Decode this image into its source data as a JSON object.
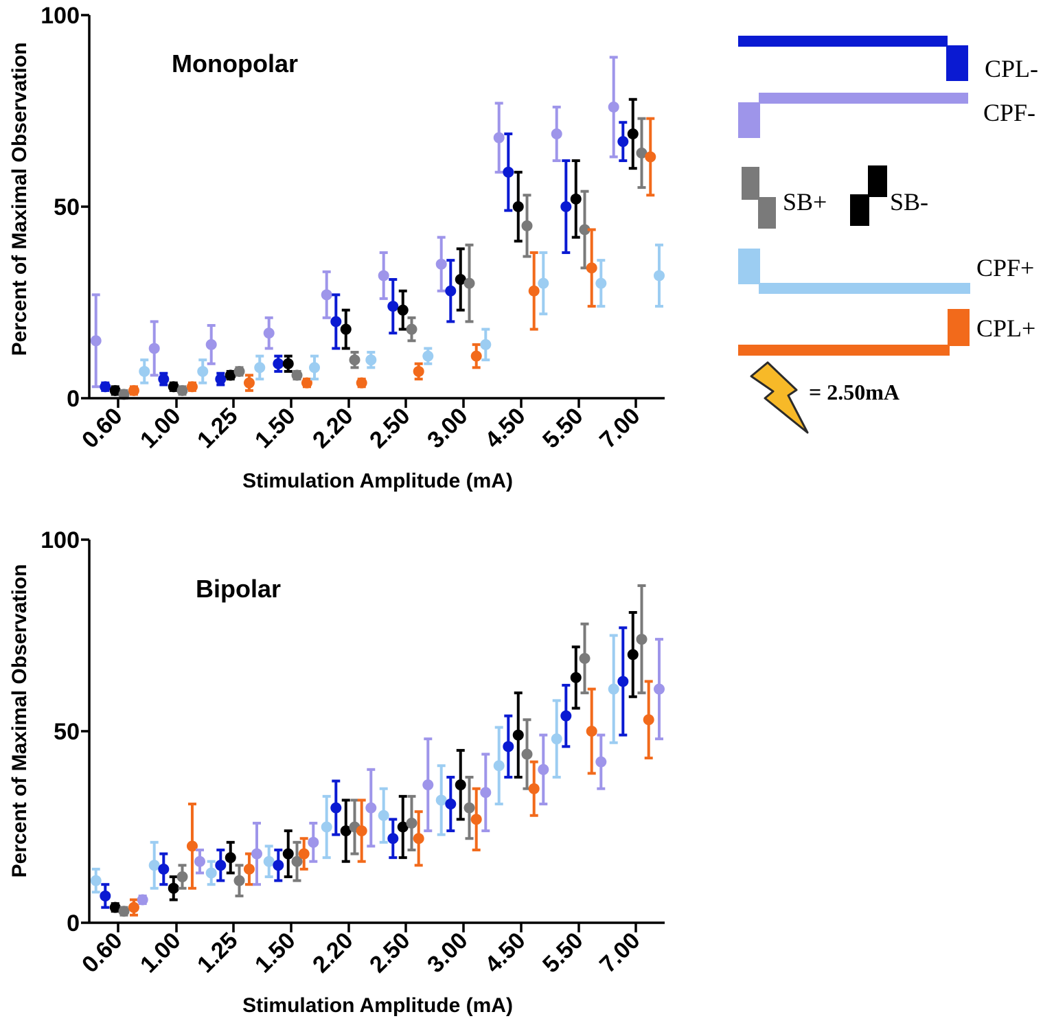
{
  "series_colors": {
    "CPL-": "#0a1ad2",
    "CPF-": "#9e95ea",
    "SB+": "#7a7a7a",
    "SB-": "#000000",
    "CPF+": "#9ccdf2",
    "CPL+": "#f26a1b"
  },
  "legend": {
    "entries": [
      {
        "key": "CPL-",
        "label": "CPL-"
      },
      {
        "key": "CPF-",
        "label": "CPF-"
      },
      {
        "key": "SB+",
        "label": "SB+"
      },
      {
        "key": "SB-",
        "label": "SB-"
      },
      {
        "key": "CPF+",
        "label": "CPF+"
      },
      {
        "key": "CPL+",
        "label": "CPL+"
      }
    ],
    "lightning_label": "= 2.50mA",
    "lightning_icon": "lightning-bolt-icon"
  },
  "chart_data": [
    {
      "type": "scatter",
      "title": "Monopolar",
      "xlabel": "Stimulation Amplitude (mA)",
      "ylabel": "Percent of Maximal Observation",
      "ylim": [
        0,
        100
      ],
      "yticks": [
        "0",
        "50",
        "100"
      ],
      "categories": [
        "0.60",
        "1.00",
        "1.25",
        "1.50",
        "2.20",
        "2.50",
        "3.00",
        "4.50",
        "5.50",
        "7.00"
      ],
      "series": [
        {
          "name": "CPF-",
          "offsets": [
            -0.38,
            -0.38,
            -0.38,
            -0.38,
            -0.38,
            -0.38,
            -0.38,
            -0.38,
            -0.38,
            -0.38
          ],
          "values": [
            15,
            13,
            14,
            17,
            27,
            32,
            35,
            68,
            69,
            76
          ],
          "errors": [
            12,
            7,
            5,
            4,
            6,
            6,
            7,
            9,
            7,
            13
          ]
        },
        {
          "name": "CPL-",
          "offsets": [
            -0.22,
            -0.22,
            -0.22,
            -0.22,
            -0.22,
            -0.22,
            -0.22,
            -0.22,
            -0.22,
            -0.22
          ],
          "values": [
            3,
            5,
            5,
            9,
            20,
            24,
            28,
            59,
            50,
            67
          ],
          "errors": [
            1,
            1.5,
            1.5,
            2,
            7,
            7,
            8,
            10,
            12,
            5
          ]
        },
        {
          "name": "SB-",
          "offsets": [
            -0.05,
            -0.05,
            -0.05,
            -0.05,
            -0.05,
            -0.05,
            -0.05,
            -0.05,
            -0.05,
            -0.05
          ],
          "values": [
            2,
            3,
            6,
            9,
            18,
            23,
            31,
            50,
            52,
            69
          ],
          "errors": [
            1,
            1,
            1,
            2,
            5,
            5,
            8,
            9,
            10,
            9
          ]
        },
        {
          "name": "SB+",
          "offsets": [
            0.1,
            0.1,
            0.1,
            0.1,
            0.1,
            0.1,
            0.1,
            0.1,
            0.1,
            0.1
          ],
          "values": [
            1,
            2,
            7,
            6,
            10,
            18,
            30,
            45,
            44,
            64
          ],
          "errors": [
            1,
            1,
            1,
            1,
            2,
            3,
            10,
            8,
            10,
            9
          ]
        },
        {
          "name": "CPL+",
          "offsets": [
            0.27,
            0.27,
            0.27,
            0.27,
            0.22,
            0.22,
            0.22,
            0.22,
            0.22,
            0.25
          ],
          "values": [
            2,
            3,
            4,
            4,
            4,
            7,
            11,
            28,
            34,
            63
          ],
          "errors": [
            1,
            1,
            2,
            1,
            1,
            2,
            3,
            10,
            10,
            10
          ]
        },
        {
          "name": "CPF+",
          "offsets": [
            0.45,
            0.45,
            0.45,
            0.4,
            0.38,
            0.38,
            0.38,
            0.38,
            0.38,
            0.4
          ],
          "values": [
            7,
            7,
            8,
            8,
            10,
            11,
            14,
            30,
            30,
            32
          ],
          "errors": [
            3,
            3,
            3,
            3,
            2,
            2,
            4,
            8,
            6,
            8
          ]
        }
      ]
    },
    {
      "type": "scatter",
      "title": "Bipolar",
      "xlabel": "Stimulation Amplitude (mA)",
      "ylabel": "Percent of Maximal Observation",
      "ylim": [
        0,
        100
      ],
      "yticks": [
        "0",
        "50",
        "100"
      ],
      "categories": [
        "0.60",
        "1.00",
        "1.25",
        "1.50",
        "2.20",
        "2.50",
        "3.00",
        "4.50",
        "5.50",
        "7.00"
      ],
      "series": [
        {
          "name": "CPF+",
          "offsets": [
            -0.38,
            -0.38,
            -0.38,
            -0.38,
            -0.38,
            -0.38,
            -0.38,
            -0.38,
            -0.38,
            -0.38
          ],
          "values": [
            11,
            15,
            13,
            16,
            25,
            28,
            32,
            41,
            48,
            61
          ],
          "errors": [
            3,
            6,
            3,
            4,
            8,
            7,
            9,
            10,
            10,
            14
          ]
        },
        {
          "name": "CPL-",
          "offsets": [
            -0.22,
            -0.22,
            -0.22,
            -0.22,
            -0.22,
            -0.22,
            -0.22,
            -0.22,
            -0.22,
            -0.22
          ],
          "values": [
            7,
            14,
            15,
            15,
            30,
            22,
            31,
            46,
            54,
            63
          ],
          "errors": [
            3,
            4,
            4,
            4,
            7,
            5,
            7,
            8,
            8,
            14
          ]
        },
        {
          "name": "SB-",
          "offsets": [
            -0.05,
            -0.05,
            -0.05,
            -0.05,
            -0.05,
            -0.05,
            -0.05,
            -0.05,
            -0.05,
            -0.05
          ],
          "values": [
            4,
            9,
            17,
            18,
            24,
            25,
            36,
            49,
            64,
            70
          ],
          "errors": [
            1,
            3,
            4,
            6,
            8,
            8,
            9,
            11,
            8,
            11
          ]
        },
        {
          "name": "SB+",
          "offsets": [
            0.1,
            0.1,
            0.1,
            0.1,
            0.1,
            0.1,
            0.1,
            0.1,
            0.1,
            0.1
          ],
          "values": [
            3,
            12,
            11,
            16,
            25,
            26,
            30,
            44,
            69,
            74
          ],
          "errors": [
            1,
            3,
            4,
            5,
            7,
            7,
            8,
            9,
            9,
            14
          ]
        },
        {
          "name": "CPL+",
          "offsets": [
            0.27,
            0.27,
            0.27,
            0.22,
            0.22,
            0.22,
            0.22,
            0.22,
            0.22,
            0.22
          ],
          "values": [
            4,
            20,
            14,
            18,
            24,
            22,
            27,
            35,
            50,
            53
          ],
          "errors": [
            2,
            11,
            4,
            4,
            8,
            7,
            8,
            7,
            11,
            10
          ]
        },
        {
          "name": "CPF-",
          "offsets": [
            0.42,
            0.4,
            0.4,
            0.38,
            0.38,
            0.38,
            0.38,
            0.38,
            0.38,
            0.4
          ],
          "values": [
            6,
            16,
            18,
            21,
            30,
            36,
            34,
            40,
            42,
            61
          ],
          "errors": [
            1,
            3,
            8,
            5,
            10,
            12,
            10,
            9,
            7,
            13
          ]
        }
      ]
    }
  ]
}
